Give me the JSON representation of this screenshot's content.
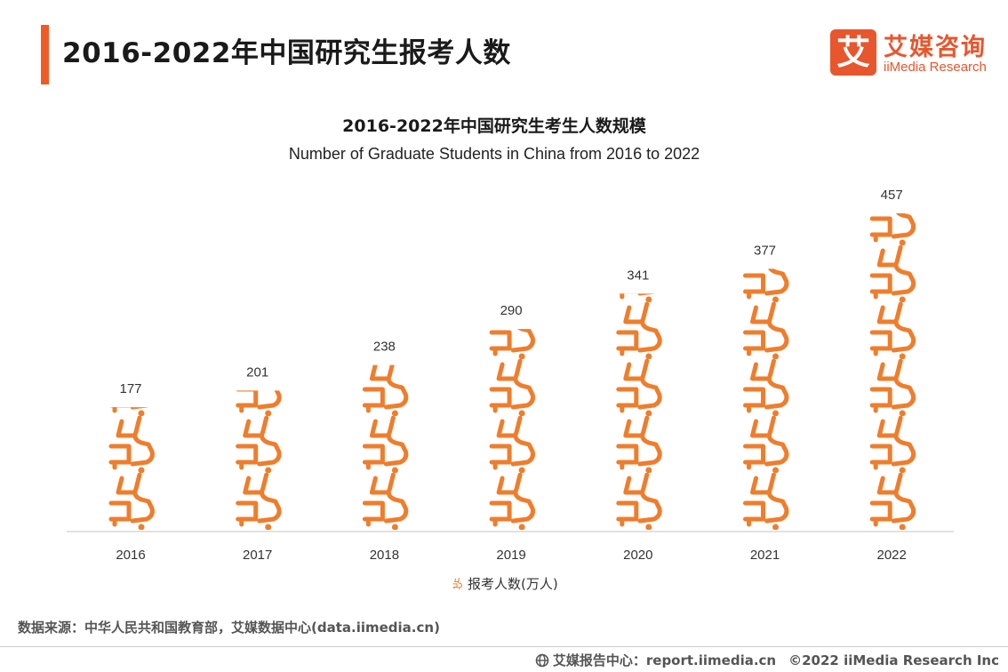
{
  "header": {
    "title": "2016-2022年中国研究生报考人数"
  },
  "brand": {
    "logo_glyph": "艾",
    "name_cn": "艾媒咨询",
    "name_en": "iiMedia Research",
    "icon": "iimedia-logo-icon"
  },
  "colors": {
    "accent": "#f15a24",
    "icon": "#ef7d2c",
    "axis": "#d9d9d9"
  },
  "chart_data": {
    "type": "bar",
    "style": "pictograph",
    "title": "2016-2022年中国研究生考生人数规模",
    "subtitle": "Number of Graduate Students in China from 2016 to 2022",
    "categories": [
      "2016",
      "2017",
      "2018",
      "2019",
      "2020",
      "2021",
      "2022"
    ],
    "series": [
      {
        "name": "报考人数(万人)",
        "values": [
          177,
          201,
          238,
          290,
          341,
          377,
          457
        ]
      }
    ],
    "data_labels": [
      "177",
      "201",
      "238",
      "290",
      "341",
      "377",
      "457"
    ],
    "xlabel": "",
    "ylabel": "",
    "ylim": [
      0,
      457
    ],
    "grid": false,
    "legend": "bottom-center",
    "icon": "student-at-desk-icon"
  },
  "source": {
    "text": "数据来源：中华人民共和国教育部，艾媒数据中心(data.iimedia.cn)"
  },
  "footer": {
    "report_label": "艾媒报告中心：report.iimedia.cn",
    "copyright": "©2022  iiMedia Research  Inc",
    "icon": "globe-icon"
  }
}
